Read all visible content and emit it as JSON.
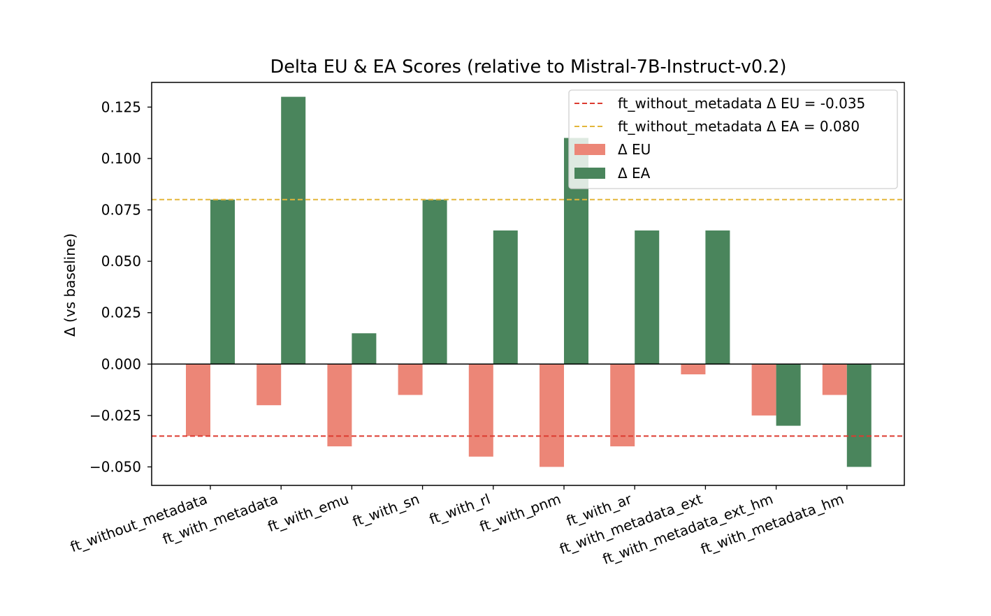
{
  "chart_data": {
    "type": "bar",
    "title": "Delta EU & EA Scores (relative to Mistral-7B-Instruct-v0.2)",
    "xlabel": "",
    "ylabel": "Δ (vs baseline)",
    "ylim": [
      -0.059,
      0.137
    ],
    "yticks": [
      "0.125",
      "0.100",
      "0.075",
      "0.050",
      "0.025",
      "0.000",
      "−0.025",
      "−0.050"
    ],
    "ytick_values": [
      0.125,
      0.1,
      0.075,
      0.05,
      0.025,
      0.0,
      -0.025,
      -0.05
    ],
    "categories": [
      "ft_without_metadata",
      "ft_with_metadata",
      "ft_with_emu",
      "ft_with_sn",
      "ft_with_rl",
      "ft_with_pnm",
      "ft_with_ar",
      "ft_with_metadata_ext",
      "ft_with_metadata_ext_hm",
      "ft_with_metadata_hm"
    ],
    "series": [
      {
        "name": "Δ EU",
        "color": "#ec8677",
        "values": [
          -0.035,
          -0.02,
          -0.04,
          -0.015,
          -0.045,
          -0.05,
          -0.04,
          -0.005,
          -0.025,
          -0.015
        ]
      },
      {
        "name": "Δ EA",
        "color": "#4a855c",
        "values": [
          0.08,
          0.13,
          0.015,
          0.08,
          0.065,
          0.11,
          0.065,
          0.065,
          -0.03,
          -0.05
        ]
      }
    ],
    "reference_lines": [
      {
        "label": "ft_without_metadata Δ EU = -0.035",
        "value": -0.035,
        "color": "#dc3b30",
        "style": "dashed"
      },
      {
        "label": "ft_without_metadata Δ EA = 0.080",
        "value": 0.08,
        "color": "#e3b63a",
        "style": "dashed"
      }
    ],
    "zero_line": true,
    "grid": false,
    "legend_position": "top-right"
  }
}
